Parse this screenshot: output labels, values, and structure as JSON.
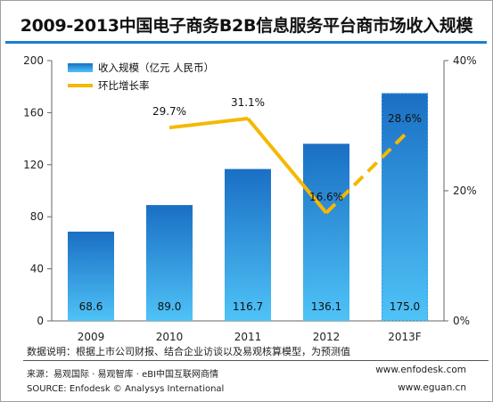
{
  "title": "2009-2013中国电子商务B2B信息服务平台商市场收入规模",
  "note": "数据说明：根据上市公司财报、结合企业访谈以及易观核算模型，为预测值",
  "source_cn": "来源：易观国际 · 易观智库 · eBI中国互联网商情",
  "source_en": "SOURCE: Enfodesk © Analysys International",
  "url_1": "www.enfodesk.com",
  "url_2": "www.eguan.cn",
  "colors": {
    "bar_top": "#1a6fc4",
    "bar_bottom": "#4fc3f7",
    "forecast_border": "#3a9ad9",
    "line": "#f5b800",
    "title_rule": "#1a7fd0"
  },
  "chart_data": {
    "type": "bar",
    "categories": [
      "2009",
      "2010",
      "2011",
      "2012",
      "2013F"
    ],
    "series": [
      {
        "name": "收入规模（亿元 人民币）",
        "type": "bar",
        "values": [
          68.6,
          89.0,
          116.7,
          136.1,
          175.0
        ],
        "labels": [
          "68.6",
          "89.0",
          "116.7",
          "136.1",
          "175.0"
        ]
      },
      {
        "name": "环比增长率",
        "type": "line",
        "axis": "right",
        "values": [
          null,
          29.7,
          31.1,
          16.6,
          28.6
        ],
        "labels": [
          "",
          "29.7%",
          "31.1%",
          "16.6%",
          "28.6%"
        ]
      }
    ],
    "y_left": {
      "min": 0,
      "max": 200,
      "ticks": [
        "0",
        "40",
        "80",
        "120",
        "160",
        "200"
      ]
    },
    "y_right": {
      "min": 0,
      "max": 40,
      "ticks": [
        "0%",
        "20%",
        "40%"
      ]
    },
    "forecast_category": "2013F",
    "legend_position": "top-left",
    "grid": false
  }
}
